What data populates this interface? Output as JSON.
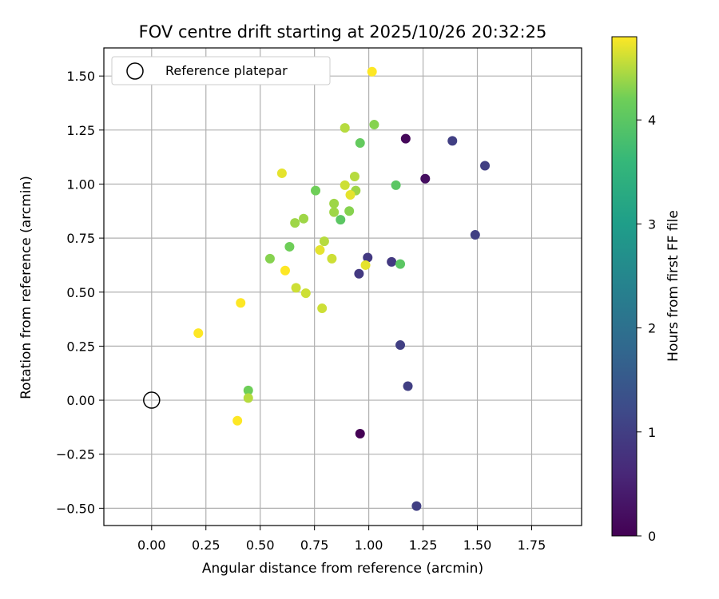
{
  "chart_data": {
    "type": "scatter",
    "title": "FOV centre drift starting at 2025/10/26 20:32:25",
    "xlabel": "Angular distance from reference (arcmin)",
    "ylabel": "Rotation from reference (arcmin)",
    "xlim": [
      -0.22,
      1.98
    ],
    "ylim": [
      -0.58,
      1.63
    ],
    "xticks": [
      0.0,
      0.25,
      0.5,
      0.75,
      1.0,
      1.25,
      1.5,
      1.75
    ],
    "xtick_labels": [
      "0.00",
      "0.25",
      "0.50",
      "0.75",
      "1.00",
      "1.25",
      "1.50",
      "1.75"
    ],
    "yticks": [
      -0.5,
      -0.25,
      0.0,
      0.25,
      0.5,
      0.75,
      1.0,
      1.25,
      1.5
    ],
    "ytick_labels": [
      "−0.50",
      "−0.25",
      "0.00",
      "0.25",
      "0.50",
      "0.75",
      "1.00",
      "1.25",
      "1.50"
    ],
    "grid": true,
    "legend": {
      "location": "upper-left",
      "entries": [
        "Reference platepar"
      ]
    },
    "reference_point": {
      "x": 0.0,
      "y": 0.0,
      "label": "Reference platepar"
    },
    "colorbar": {
      "label": "Hours from first FF file",
      "range": [
        0,
        4.8
      ],
      "ticks": [
        0,
        1,
        2,
        3,
        4
      ],
      "tick_labels": [
        "0",
        "1",
        "2",
        "3",
        "4"
      ],
      "colormap": "viridis"
    },
    "points": [
      {
        "x": 0.96,
        "y": -0.155,
        "h": 0.0
      },
      {
        "x": 1.17,
        "y": 1.21,
        "h": 0.1
      },
      {
        "x": 1.26,
        "y": 1.025,
        "h": 0.2
      },
      {
        "x": 1.385,
        "y": 1.2,
        "h": 1.0
      },
      {
        "x": 1.535,
        "y": 1.085,
        "h": 1.0
      },
      {
        "x": 1.49,
        "y": 0.765,
        "h": 1.0
      },
      {
        "x": 0.995,
        "y": 0.66,
        "h": 0.9
      },
      {
        "x": 0.955,
        "y": 0.585,
        "h": 0.9
      },
      {
        "x": 1.105,
        "y": 0.64,
        "h": 0.9
      },
      {
        "x": 1.145,
        "y": 0.255,
        "h": 1.0
      },
      {
        "x": 1.18,
        "y": 0.065,
        "h": 1.0
      },
      {
        "x": 1.22,
        "y": -0.49,
        "h": 1.0
      },
      {
        "x": 1.015,
        "y": 1.52,
        "h": 4.8
      },
      {
        "x": 1.025,
        "y": 1.275,
        "h": 4.3
      },
      {
        "x": 0.89,
        "y": 1.26,
        "h": 4.5
      },
      {
        "x": 0.96,
        "y": 1.19,
        "h": 4.1
      },
      {
        "x": 0.6,
        "y": 1.05,
        "h": 4.7
      },
      {
        "x": 0.935,
        "y": 1.035,
        "h": 4.5
      },
      {
        "x": 0.89,
        "y": 0.995,
        "h": 4.6
      },
      {
        "x": 0.94,
        "y": 0.97,
        "h": 4.4
      },
      {
        "x": 0.755,
        "y": 0.97,
        "h": 4.2
      },
      {
        "x": 1.125,
        "y": 0.995,
        "h": 4.0
      },
      {
        "x": 0.915,
        "y": 0.95,
        "h": 4.7
      },
      {
        "x": 0.84,
        "y": 0.91,
        "h": 4.4
      },
      {
        "x": 0.84,
        "y": 0.87,
        "h": 4.4
      },
      {
        "x": 0.91,
        "y": 0.875,
        "h": 4.3
      },
      {
        "x": 0.87,
        "y": 0.835,
        "h": 4.0
      },
      {
        "x": 0.66,
        "y": 0.82,
        "h": 4.4
      },
      {
        "x": 0.7,
        "y": 0.84,
        "h": 4.4
      },
      {
        "x": 0.795,
        "y": 0.735,
        "h": 4.5
      },
      {
        "x": 0.775,
        "y": 0.695,
        "h": 4.7
      },
      {
        "x": 0.635,
        "y": 0.71,
        "h": 4.2
      },
      {
        "x": 0.545,
        "y": 0.655,
        "h": 4.3
      },
      {
        "x": 0.83,
        "y": 0.655,
        "h": 4.6
      },
      {
        "x": 0.985,
        "y": 0.625,
        "h": 4.7
      },
      {
        "x": 1.145,
        "y": 0.63,
        "h": 4.0
      },
      {
        "x": 0.615,
        "y": 0.6,
        "h": 4.8
      },
      {
        "x": 0.665,
        "y": 0.52,
        "h": 4.6
      },
      {
        "x": 0.71,
        "y": 0.495,
        "h": 4.6
      },
      {
        "x": 0.785,
        "y": 0.425,
        "h": 4.6
      },
      {
        "x": 0.41,
        "y": 0.45,
        "h": 4.8
      },
      {
        "x": 0.215,
        "y": 0.31,
        "h": 4.8
      },
      {
        "x": 0.445,
        "y": 0.045,
        "h": 4.2
      },
      {
        "x": 0.445,
        "y": 0.01,
        "h": 4.5
      },
      {
        "x": 0.395,
        "y": -0.095,
        "h": 4.8
      }
    ]
  }
}
